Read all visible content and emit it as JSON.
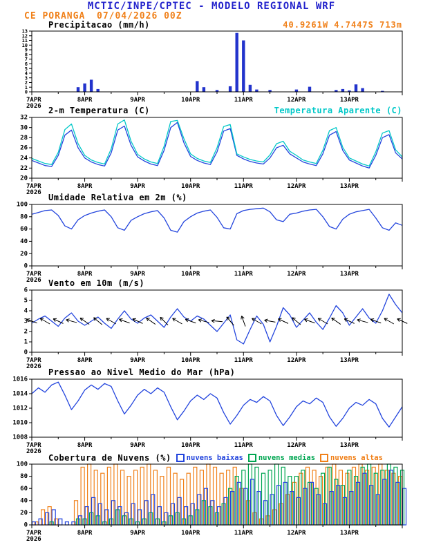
{
  "header": {
    "title": "MCTIC/INPE/CPTEC - MODELO REGIONAL WRF",
    "station": "CE PORANGA",
    "run": "07/04/2026 00Z",
    "coords": "40.9261W 4.7447S 713m"
  },
  "colors": {
    "header_blue": "#2222cc",
    "orange": "#f08019",
    "cyan": "#00c8c8",
    "green": "#00a651",
    "line_blue": "#2244dd",
    "bar_blue": "#2233cc",
    "black": "#000000"
  },
  "x_axis": {
    "day_labels": [
      "7APR",
      "8APR",
      "9APR",
      "10APR",
      "11APR",
      "12APR",
      "13APR"
    ],
    "year": "2026",
    "total_hours": 168,
    "step_hours": 3
  },
  "chart_data": [
    {
      "id": "precipitation",
      "type": "bar",
      "title": "Precipitacao (mm/h)",
      "ymin": 0,
      "ymax": 13,
      "ystep": 1,
      "ylabel_size": 7,
      "color": "#2233cc",
      "values": [
        0,
        0,
        0,
        0,
        0,
        0,
        0,
        1.0,
        1.8,
        2.6,
        0.6,
        0,
        0,
        0,
        0,
        0,
        0,
        0,
        0,
        0,
        0,
        0,
        0,
        0,
        0,
        2.3,
        1.0,
        0,
        0.4,
        0,
        1.2,
        12.6,
        11.0,
        1.5,
        0.5,
        0,
        0.4,
        0,
        0,
        0,
        0.5,
        0,
        1.1,
        0,
        0,
        0,
        0.4,
        0.6,
        0.3,
        1.6,
        0.8,
        0,
        0,
        0.2,
        0,
        0,
        0
      ]
    },
    {
      "id": "temperature",
      "type": "line",
      "title": "2-m Temperatura (C)",
      "legend_right": "Temperatura Aparente (C)",
      "ymin": 20,
      "ymax": 32,
      "ystep": 2,
      "series": [
        {
          "name": "2-m Temperatura (C)",
          "color": "#2244dd",
          "values": [
            23.5,
            23.0,
            22.5,
            22.3,
            24.5,
            28.5,
            29.5,
            26.0,
            24.0,
            23.2,
            22.7,
            22.4,
            25.0,
            29.5,
            30.3,
            26.5,
            24.2,
            23.4,
            22.8,
            22.5,
            25.5,
            30.0,
            31.0,
            27.0,
            24.3,
            23.5,
            23.0,
            22.7,
            25.2,
            29.3,
            29.8,
            24.5,
            23.8,
            23.3,
            23.0,
            22.8,
            24.0,
            26.0,
            26.5,
            24.8,
            24.0,
            23.2,
            22.8,
            22.5,
            24.8,
            28.5,
            29.2,
            25.5,
            23.6,
            23.0,
            22.4,
            22.0,
            24.5,
            28.0,
            28.6,
            25.0,
            23.8
          ]
        },
        {
          "name": "Temperatura Aparente (C)",
          "color": "#00c8c8",
          "values": [
            23.9,
            23.4,
            22.9,
            22.7,
            25.1,
            29.6,
            30.7,
            26.8,
            24.5,
            23.6,
            23.1,
            22.8,
            25.8,
            30.7,
            31.5,
            27.3,
            24.7,
            23.8,
            23.2,
            22.9,
            26.3,
            31.2,
            31.4,
            27.8,
            24.8,
            23.9,
            23.4,
            23.1,
            26.0,
            30.2,
            30.6,
            24.8,
            24.2,
            23.7,
            23.4,
            23.2,
            24.6,
            26.8,
            27.3,
            25.3,
            24.5,
            23.6,
            23.2,
            22.9,
            25.5,
            29.4,
            30.0,
            26.1,
            24.0,
            23.4,
            22.8,
            22.4,
            25.2,
            28.9,
            29.4,
            25.6,
            24.2
          ]
        }
      ]
    },
    {
      "id": "humidity",
      "type": "line",
      "title": "Umidade Relativa em 2m (%)",
      "ymin": 0,
      "ymax": 100,
      "ystep": 20,
      "series": [
        {
          "name": "Umidade Relativa em 2m (%)",
          "color": "#2244dd",
          "values": [
            84,
            87,
            90,
            91,
            82,
            65,
            60,
            75,
            82,
            86,
            89,
            91,
            80,
            62,
            58,
            74,
            80,
            85,
            88,
            90,
            78,
            58,
            55,
            72,
            80,
            86,
            89,
            91,
            79,
            62,
            60,
            85,
            90,
            92,
            93,
            94,
            88,
            75,
            72,
            84,
            86,
            89,
            91,
            92,
            80,
            64,
            60,
            76,
            84,
            88,
            90,
            92,
            78,
            62,
            58,
            70,
            66
          ]
        }
      ]
    },
    {
      "id": "wind",
      "type": "line",
      "title": "Vento em 10m (m/s)",
      "ymin": 0,
      "ymax": 6,
      "ystep": 1,
      "barb_level": 3,
      "barb_directions_deg": [
        110,
        120,
        115,
        105,
        125,
        130,
        120,
        110,
        115,
        125,
        135,
        120,
        110,
        105,
        95,
        140,
        160,
        120,
        100,
        115,
        130,
        110,
        120,
        125,
        115,
        105,
        110,
        120,
        115
      ],
      "series": [
        {
          "name": "Vento em 10m (m/s)",
          "color": "#2244dd",
          "values": [
            2.8,
            3.2,
            3.5,
            3.0,
            2.5,
            3.3,
            3.8,
            3.0,
            2.6,
            3.0,
            3.4,
            2.8,
            2.3,
            3.2,
            4.0,
            3.2,
            2.8,
            3.3,
            3.6,
            3.0,
            2.4,
            3.4,
            4.2,
            3.4,
            3.0,
            3.5,
            3.2,
            2.6,
            2.0,
            2.8,
            3.6,
            1.2,
            0.8,
            2.2,
            3.5,
            2.7,
            1.0,
            2.5,
            4.3,
            3.6,
            2.4,
            3.1,
            3.8,
            2.9,
            2.2,
            3.3,
            4.5,
            3.8,
            2.6,
            3.4,
            4.2,
            3.3,
            2.8,
            4.0,
            5.6,
            4.6,
            3.8
          ]
        }
      ]
    },
    {
      "id": "pressure",
      "type": "line",
      "title": "Pressao ao Nivel Medio do Mar (hPa)",
      "ymin": 1008,
      "ymax": 1016,
      "ystep": 2,
      "series": [
        {
          "name": "Pressao ao Nivel Medio do Mar (hPa)",
          "color": "#2244dd",
          "values": [
            1014.0,
            1014.8,
            1014.2,
            1015.2,
            1015.6,
            1013.8,
            1011.8,
            1013.0,
            1014.5,
            1015.2,
            1014.6,
            1015.4,
            1015.0,
            1013.0,
            1011.2,
            1012.4,
            1013.8,
            1014.6,
            1014.0,
            1014.8,
            1014.2,
            1012.2,
            1010.4,
            1011.6,
            1013.0,
            1013.8,
            1013.2,
            1014.0,
            1013.4,
            1011.4,
            1009.8,
            1011.0,
            1012.4,
            1013.2,
            1012.8,
            1013.6,
            1013.0,
            1011.0,
            1009.6,
            1010.8,
            1012.2,
            1013.0,
            1012.6,
            1013.4,
            1012.8,
            1010.8,
            1009.5,
            1010.6,
            1012.0,
            1012.8,
            1012.4,
            1013.2,
            1012.6,
            1010.6,
            1009.4,
            1010.8,
            1012.2
          ]
        }
      ]
    },
    {
      "id": "clouds",
      "type": "bar-group",
      "title": "Cobertura de Nuvens (%)",
      "ymin": 0,
      "ymax": 100,
      "ystep": 20,
      "series": [
        {
          "name": "nuvens baixas",
          "color": "#2244dd",
          "values": [
            5,
            10,
            20,
            25,
            10,
            5,
            5,
            15,
            30,
            45,
            35,
            25,
            40,
            30,
            20,
            35,
            25,
            40,
            50,
            30,
            20,
            35,
            45,
            30,
            35,
            50,
            60,
            40,
            30,
            45,
            55,
            70,
            60,
            75,
            55,
            40,
            50,
            65,
            70,
            55,
            45,
            60,
            70,
            50,
            35,
            55,
            65,
            45,
            55,
            70,
            85,
            65,
            50,
            75,
            90,
            70,
            60
          ]
        },
        {
          "name": "nuvens medias",
          "color": "#00a651",
          "values": [
            0,
            0,
            0,
            5,
            0,
            0,
            0,
            10,
            10,
            20,
            15,
            5,
            10,
            25,
            15,
            10,
            5,
            10,
            20,
            10,
            5,
            15,
            20,
            10,
            15,
            25,
            40,
            30,
            20,
            35,
            60,
            80,
            90,
            100,
            95,
            85,
            90,
            100,
            95,
            80,
            80,
            90,
            70,
            60,
            85,
            95,
            75,
            65,
            90,
            80,
            95,
            100,
            85,
            90,
            100,
            95,
            90
          ]
        },
        {
          "name": "nuvens altas",
          "color": "#f08019",
          "values": [
            0,
            5,
            25,
            30,
            10,
            0,
            0,
            40,
            95,
            100,
            90,
            85,
            95,
            100,
            90,
            80,
            90,
            95,
            100,
            90,
            80,
            95,
            85,
            75,
            85,
            95,
            90,
            100,
            95,
            85,
            90,
            95,
            60,
            40,
            20,
            10,
            15,
            25,
            35,
            50,
            70,
            85,
            95,
            90,
            80,
            95,
            100,
            90,
            85,
            95,
            100,
            90,
            95,
            100,
            90,
            85,
            80
          ]
        }
      ]
    }
  ]
}
